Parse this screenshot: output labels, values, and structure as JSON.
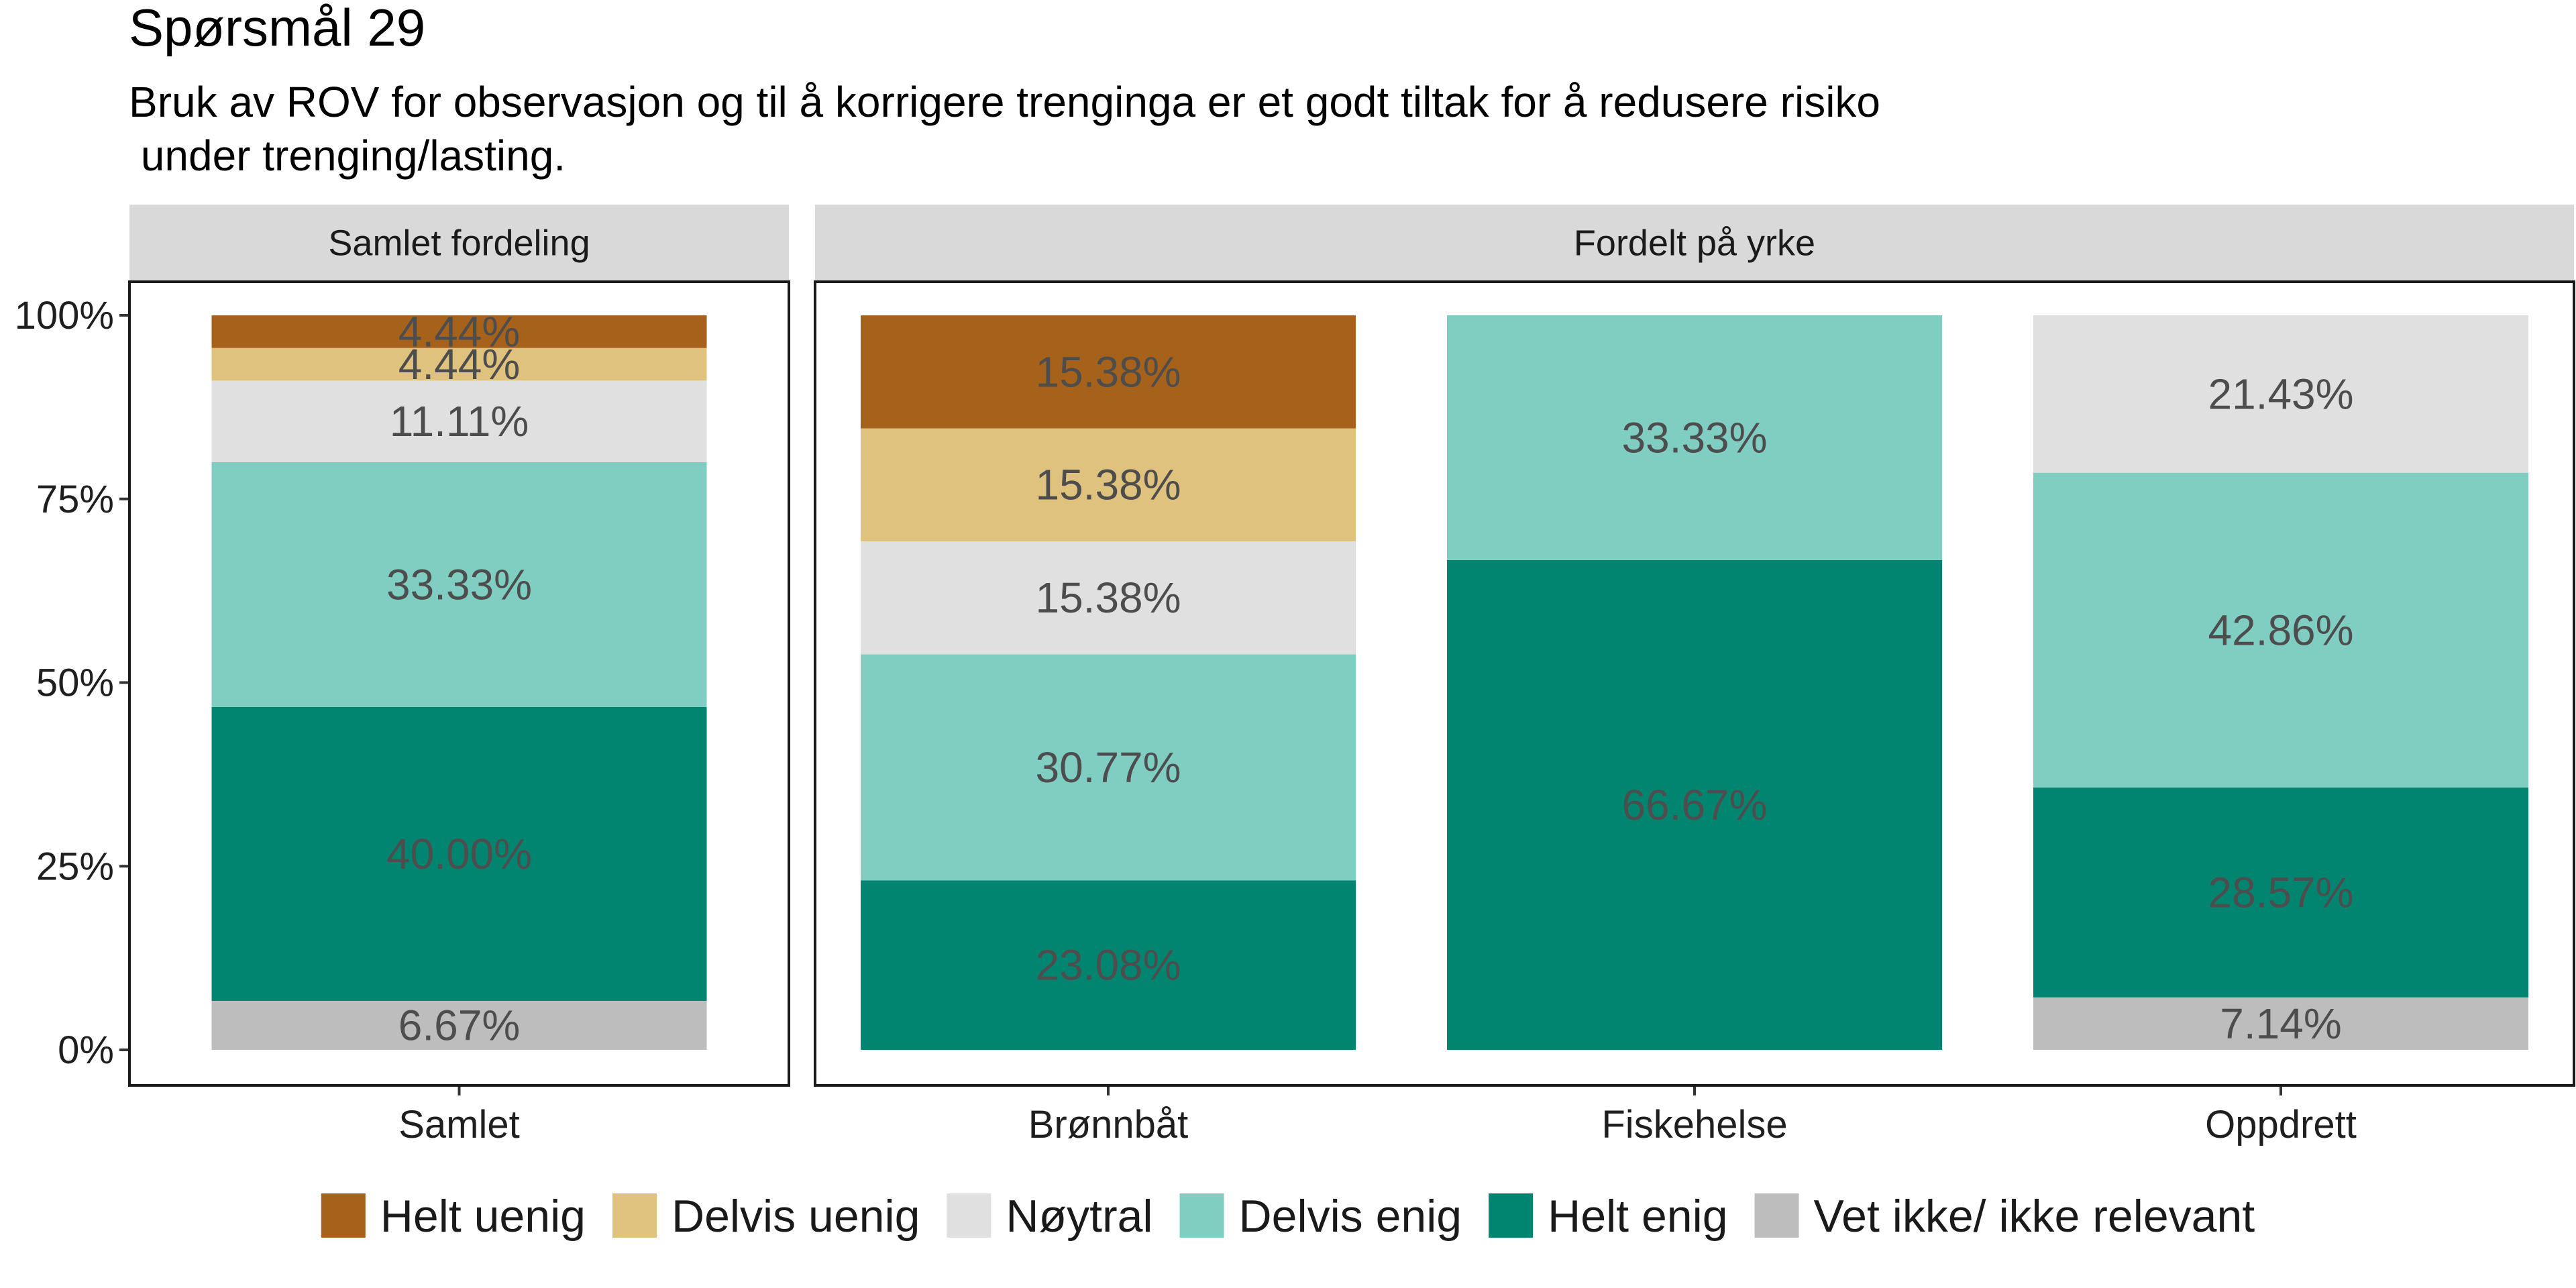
{
  "title": "Spørsmål 29",
  "subtitle": "Bruk av ROV for observasjon og til å korrigere trenginga er et godt tiltak for å redusere risiko\n under trenging/lasting.",
  "colors": {
    "Helt uenig": "#A6611A",
    "Delvis uenig": "#DFC27D",
    "Nøytral": "#E0E0E0",
    "Delvis enig": "#80CDC1",
    "Helt enig": "#018571",
    "Vet ikke/ ikke relevant": "#BDBDBD"
  },
  "chart_data": {
    "type": "bar",
    "stacked": true,
    "y_axis": {
      "ticks": [
        "0%",
        "25%",
        "50%",
        "75%",
        "100%"
      ],
      "range": [
        0,
        100
      ]
    },
    "stack_order_bottom_to_top": [
      "Vet ikke/ ikke relevant",
      "Helt enig",
      "Delvis enig",
      "Nøytral",
      "Delvis uenig",
      "Helt uenig"
    ],
    "legend": {
      "position": "bottom",
      "entries": [
        "Helt uenig",
        "Delvis uenig",
        "Nøytral",
        "Delvis enig",
        "Helt enig",
        "Vet ikke/ ikke relevant"
      ]
    },
    "panels": [
      {
        "strip": "Samlet fordeling",
        "categories": [
          "Samlet"
        ],
        "bars": [
          {
            "category": "Samlet",
            "segments": [
              {
                "name": "Vet ikke/ ikke relevant",
                "value": 6.67,
                "label": "6.67%"
              },
              {
                "name": "Helt enig",
                "value": 40.0,
                "label": "40.00%"
              },
              {
                "name": "Delvis enig",
                "value": 33.33,
                "label": "33.33%"
              },
              {
                "name": "Nøytral",
                "value": 11.11,
                "label": "11.11%"
              },
              {
                "name": "Delvis uenig",
                "value": 4.44,
                "label": "4.44%"
              },
              {
                "name": "Helt uenig",
                "value": 4.44,
                "label": "4.44%"
              }
            ]
          }
        ]
      },
      {
        "strip": "Fordelt på yrke",
        "categories": [
          "Brønnbåt",
          "Fiskehelse",
          "Oppdrett"
        ],
        "bars": [
          {
            "category": "Brønnbåt",
            "segments": [
              {
                "name": "Helt enig",
                "value": 23.08,
                "label": "23.08%"
              },
              {
                "name": "Delvis enig",
                "value": 30.77,
                "label": "30.77%"
              },
              {
                "name": "Nøytral",
                "value": 15.38,
                "label": "15.38%"
              },
              {
                "name": "Delvis uenig",
                "value": 15.38,
                "label": "15.38%"
              },
              {
                "name": "Helt uenig",
                "value": 15.38,
                "label": "15.38%"
              }
            ]
          },
          {
            "category": "Fiskehelse",
            "segments": [
              {
                "name": "Helt enig",
                "value": 66.67,
                "label": "66.67%"
              },
              {
                "name": "Delvis enig",
                "value": 33.33,
                "label": "33.33%"
              }
            ]
          },
          {
            "category": "Oppdrett",
            "segments": [
              {
                "name": "Vet ikke/ ikke relevant",
                "value": 7.14,
                "label": "7.14%"
              },
              {
                "name": "Helt enig",
                "value": 28.57,
                "label": "28.57%"
              },
              {
                "name": "Delvis enig",
                "value": 42.86,
                "label": "42.86%"
              },
              {
                "name": "Nøytral",
                "value": 21.43,
                "label": "21.43%"
              }
            ]
          }
        ]
      }
    ]
  }
}
